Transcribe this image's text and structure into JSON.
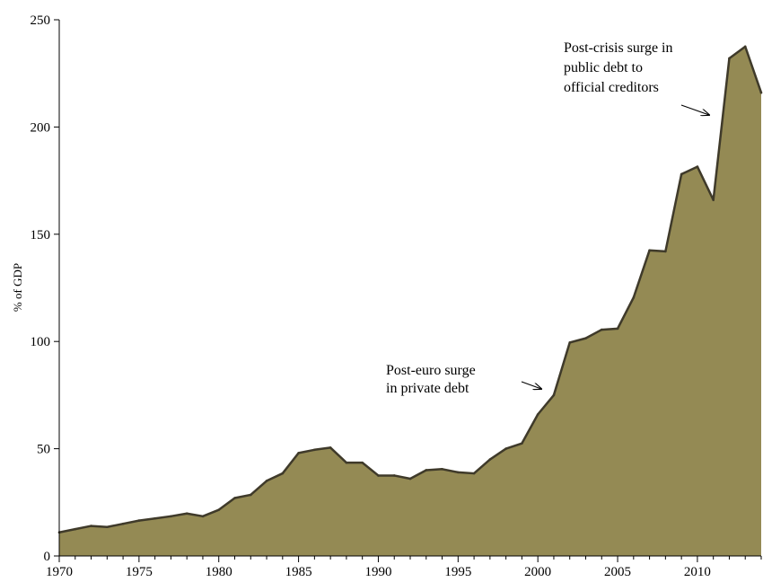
{
  "chart_data": {
    "type": "area",
    "title": "",
    "xlabel": "",
    "ylabel": "% of GDP",
    "xlim": [
      1970,
      2014
    ],
    "ylim": [
      0,
      250
    ],
    "x_ticks": [
      1970,
      1975,
      1980,
      1985,
      1990,
      1995,
      2000,
      2005,
      2010
    ],
    "y_ticks": [
      0,
      50,
      100,
      150,
      200,
      250
    ],
    "grid": false,
    "fill_color": "#948a54",
    "line_color": "#3f3a2a",
    "x": [
      1970,
      1971,
      1972,
      1973,
      1974,
      1975,
      1976,
      1977,
      1978,
      1979,
      1980,
      1981,
      1982,
      1983,
      1984,
      1985,
      1986,
      1987,
      1988,
      1989,
      1990,
      1991,
      1992,
      1993,
      1994,
      1995,
      1996,
      1997,
      1998,
      1999,
      2000,
      2001,
      2002,
      2003,
      2004,
      2005,
      2006,
      2007,
      2008,
      2009,
      2010,
      2011,
      2012,
      2013,
      2014
    ],
    "values": [
      11,
      12.5,
      14,
      13.5,
      15,
      16.5,
      17.5,
      18.5,
      19.8,
      18.5,
      21.5,
      27,
      28.5,
      35,
      38.5,
      48,
      49.5,
      50.5,
      43.5,
      43.5,
      37.5,
      37.5,
      36,
      40,
      40.5,
      39,
      38.5,
      45,
      50,
      52.5,
      66,
      75,
      99.5,
      101.5,
      105.5,
      106,
      120.5,
      142.5,
      142,
      178,
      181.5,
      166,
      232,
      237.5,
      216
    ],
    "annotations": [
      {
        "lines": [
          "Post-euro surge",
          "in private debt"
        ],
        "x": 2000.5,
        "y": 79
      },
      {
        "lines": [
          "Post-crisis surge in",
          "public debt to",
          "official creditors"
        ],
        "x": 2011.2,
        "y": 207
      }
    ]
  }
}
